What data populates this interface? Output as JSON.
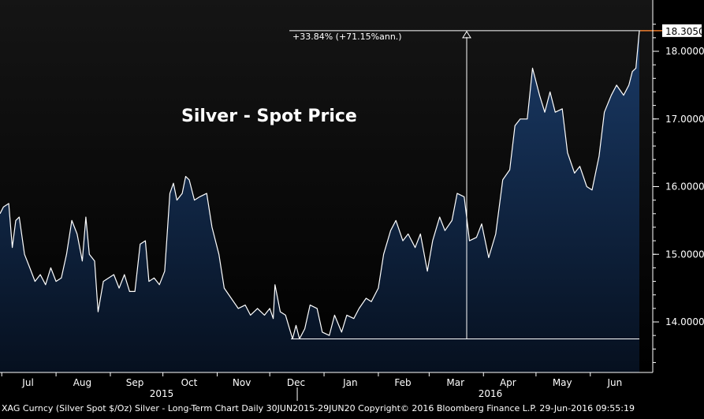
{
  "chart_data": {
    "type": "area",
    "title": "Silver - Spot Price",
    "footer": "XAG Curncy (Silver Spot  $/Oz) Silver - Long-Term Chart  Daily 30JUN2015-29JUN20 Copyright© 2016 Bloomberg Finance L.P. 29-Jun-2016 09:55:19",
    "annotation": "+33.84% (+71.15%ann.)",
    "last_value_label": "18.3050",
    "ylim": [
      13.3,
      18.55
    ],
    "y_ticks": [
      "14.0000",
      "15.0000",
      "16.0000",
      "17.0000",
      "18.0000"
    ],
    "x_ticks": [
      "Jul",
      "Aug",
      "Sep",
      "Oct",
      "Nov",
      "Dec",
      "Jan",
      "Feb",
      "Mar",
      "Apr",
      "May",
      "Jun"
    ],
    "x_years": [
      "2015",
      "2016"
    ],
    "colors": {
      "line": "#ffffff",
      "fill_top": "#1a3a66",
      "fill_bottom": "#06101f",
      "bg_top": "#151515",
      "bg_bottom": "#000000",
      "accent": "#e8792a"
    },
    "series": [
      {
        "points": [
          [
            "2015-06-30",
            15.6
          ],
          [
            "2015-07-02",
            15.7
          ],
          [
            "2015-07-05",
            15.75
          ],
          [
            "2015-07-07",
            15.1
          ],
          [
            "2015-07-09",
            15.5
          ],
          [
            "2015-07-11",
            15.55
          ],
          [
            "2015-07-14",
            15.0
          ],
          [
            "2015-07-17",
            14.8
          ],
          [
            "2015-07-20",
            14.6
          ],
          [
            "2015-07-23",
            14.7
          ],
          [
            "2015-07-26",
            14.55
          ],
          [
            "2015-07-29",
            14.8
          ],
          [
            "2015-08-01",
            14.6
          ],
          [
            "2015-08-04",
            14.65
          ],
          [
            "2015-08-07",
            15.0
          ],
          [
            "2015-08-10",
            15.5
          ],
          [
            "2015-08-13",
            15.3
          ],
          [
            "2015-08-16",
            14.9
          ],
          [
            "2015-08-18",
            15.55
          ],
          [
            "2015-08-20",
            15.0
          ],
          [
            "2015-08-23",
            14.9
          ],
          [
            "2015-08-25",
            14.15
          ],
          [
            "2015-08-28",
            14.6
          ],
          [
            "2015-08-31",
            14.65
          ],
          [
            "2015-09-03",
            14.7
          ],
          [
            "2015-09-06",
            14.5
          ],
          [
            "2015-09-09",
            14.7
          ],
          [
            "2015-09-12",
            14.45
          ],
          [
            "2015-09-15",
            14.45
          ],
          [
            "2015-09-18",
            15.15
          ],
          [
            "2015-09-21",
            15.2
          ],
          [
            "2015-09-23",
            14.6
          ],
          [
            "2015-09-26",
            14.65
          ],
          [
            "2015-09-29",
            14.55
          ],
          [
            "2015-10-02",
            14.75
          ],
          [
            "2015-10-05",
            15.9
          ],
          [
            "2015-10-07",
            16.05
          ],
          [
            "2015-10-09",
            15.8
          ],
          [
            "2015-10-12",
            15.9
          ],
          [
            "2015-10-14",
            16.15
          ],
          [
            "2015-10-16",
            16.1
          ],
          [
            "2015-10-19",
            15.8
          ],
          [
            "2015-10-22",
            15.85
          ],
          [
            "2015-10-26",
            15.9
          ],
          [
            "2015-10-29",
            15.4
          ],
          [
            "2015-11-02",
            15.0
          ],
          [
            "2015-11-05",
            14.5
          ],
          [
            "2015-11-09",
            14.35
          ],
          [
            "2015-11-13",
            14.2
          ],
          [
            "2015-11-17",
            14.25
          ],
          [
            "2015-11-20",
            14.1
          ],
          [
            "2015-11-24",
            14.2
          ],
          [
            "2015-11-28",
            14.1
          ],
          [
            "2015-12-01",
            14.2
          ],
          [
            "2015-12-03",
            14.05
          ],
          [
            "2015-12-04",
            14.55
          ],
          [
            "2015-12-07",
            14.15
          ],
          [
            "2015-12-10",
            14.1
          ],
          [
            "2015-12-14",
            13.75
          ],
          [
            "2015-12-16",
            13.95
          ],
          [
            "2015-12-18",
            13.75
          ],
          [
            "2015-12-21",
            13.9
          ],
          [
            "2015-12-24",
            14.25
          ],
          [
            "2015-12-28",
            14.2
          ],
          [
            "2015-12-31",
            13.85
          ],
          [
            "2016-01-04",
            13.8
          ],
          [
            "2016-01-07",
            14.1
          ],
          [
            "2016-01-11",
            13.85
          ],
          [
            "2016-01-14",
            14.1
          ],
          [
            "2016-01-18",
            14.05
          ],
          [
            "2016-01-21",
            14.2
          ],
          [
            "2016-01-25",
            14.35
          ],
          [
            "2016-01-28",
            14.3
          ],
          [
            "2016-02-01",
            14.5
          ],
          [
            "2016-02-04",
            15.0
          ],
          [
            "2016-02-08",
            15.35
          ],
          [
            "2016-02-11",
            15.5
          ],
          [
            "2016-02-15",
            15.2
          ],
          [
            "2016-02-18",
            15.3
          ],
          [
            "2016-02-22",
            15.1
          ],
          [
            "2016-02-25",
            15.3
          ],
          [
            "2016-02-29",
            14.75
          ],
          [
            "2016-03-03",
            15.2
          ],
          [
            "2016-03-07",
            15.55
          ],
          [
            "2016-03-10",
            15.35
          ],
          [
            "2016-03-14",
            15.5
          ],
          [
            "2016-03-17",
            15.9
          ],
          [
            "2016-03-21",
            15.85
          ],
          [
            "2016-03-24",
            15.2
          ],
          [
            "2016-03-28",
            15.25
          ],
          [
            "2016-03-31",
            15.45
          ],
          [
            "2016-04-04",
            14.95
          ],
          [
            "2016-04-08",
            15.3
          ],
          [
            "2016-04-12",
            16.1
          ],
          [
            "2016-04-16",
            16.25
          ],
          [
            "2016-04-19",
            16.9
          ],
          [
            "2016-04-22",
            17.0
          ],
          [
            "2016-04-26",
            17.0
          ],
          [
            "2016-04-29",
            17.75
          ],
          [
            "2016-05-03",
            17.35
          ],
          [
            "2016-05-06",
            17.1
          ],
          [
            "2016-05-09",
            17.4
          ],
          [
            "2016-05-12",
            17.1
          ],
          [
            "2016-05-16",
            17.15
          ],
          [
            "2016-05-19",
            16.5
          ],
          [
            "2016-05-23",
            16.2
          ],
          [
            "2016-05-26",
            16.3
          ],
          [
            "2016-05-30",
            16.0
          ],
          [
            "2016-06-02",
            15.95
          ],
          [
            "2016-06-06",
            16.45
          ],
          [
            "2016-06-09",
            17.1
          ],
          [
            "2016-06-13",
            17.35
          ],
          [
            "2016-06-16",
            17.5
          ],
          [
            "2016-06-20",
            17.35
          ],
          [
            "2016-06-23",
            17.5
          ],
          [
            "2016-06-25",
            17.7
          ],
          [
            "2016-06-27",
            17.75
          ],
          [
            "2016-06-29",
            18.305
          ]
        ]
      }
    ]
  }
}
